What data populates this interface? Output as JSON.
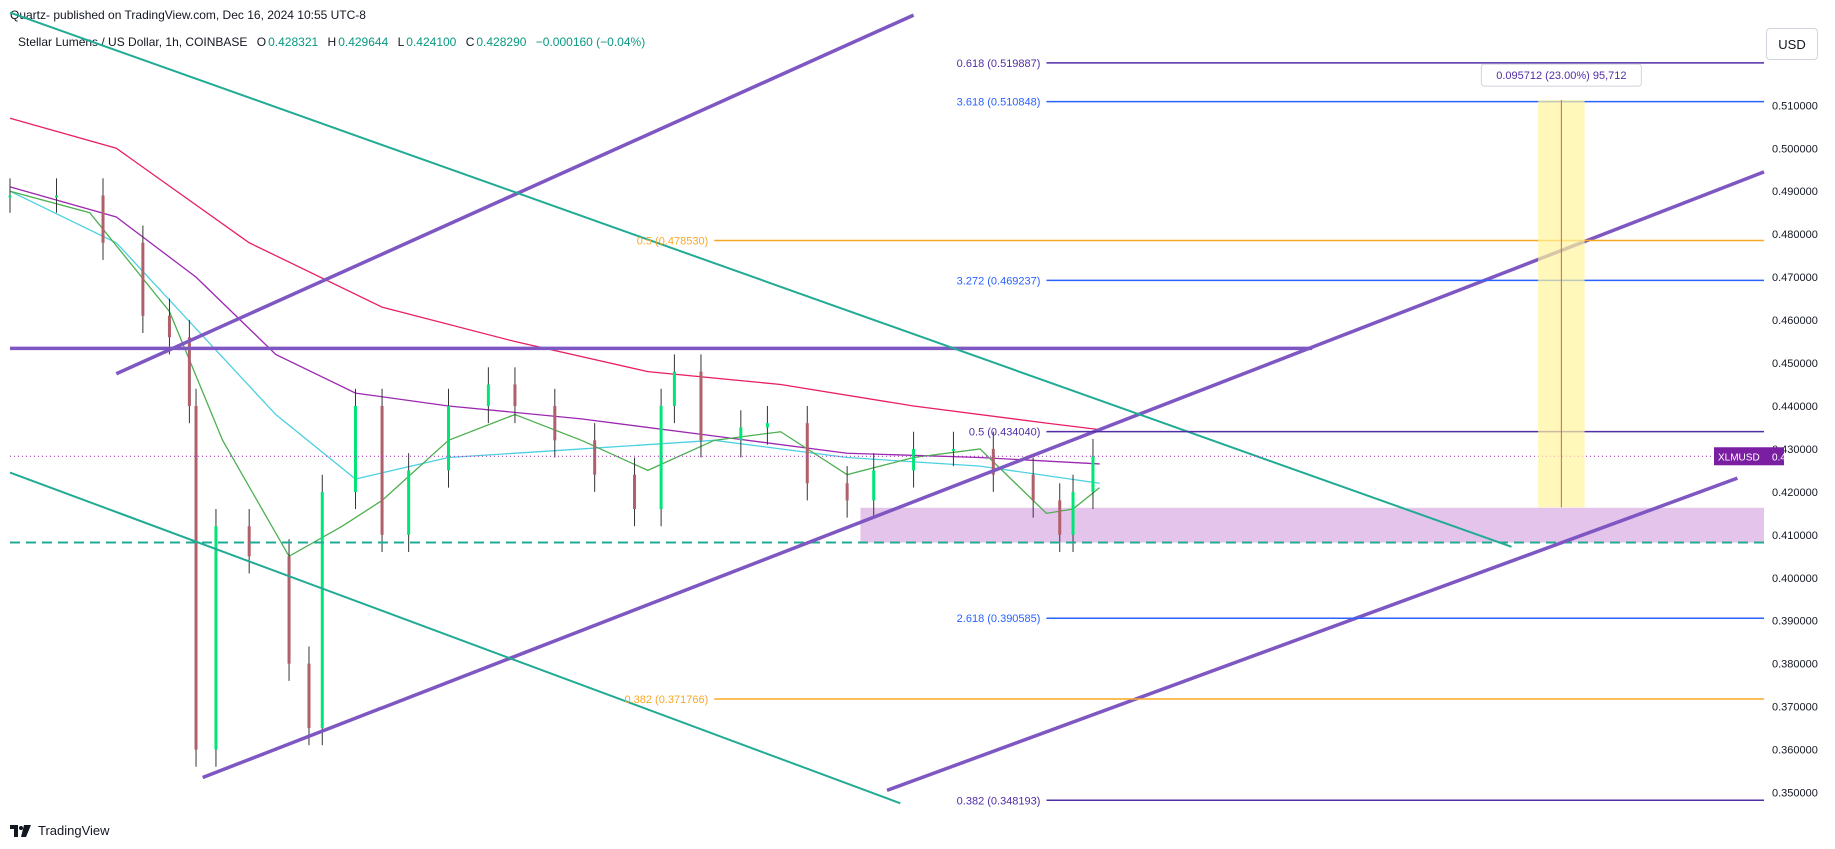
{
  "header": {
    "publisher": "Quartz- published on TradingView.com, Dec 16, 2024 10:55 UTC-8"
  },
  "legend": {
    "symbol": "Stellar Lumens / US Dollar, 1h, COINBASE",
    "o_label": "O",
    "o_val": "0.428321",
    "h_label": "H",
    "h_val": "0.429644",
    "l_label": "L",
    "l_val": "0.424100",
    "c_label": "C",
    "c_val": "0.428290",
    "change": "−0.000160 (−0.04%)"
  },
  "price_scale": {
    "currency": "USD"
  },
  "footer": {
    "brand": "TradingView"
  },
  "colors": {
    "purple": "#7e57c2",
    "teal": "#22ab94",
    "orange": "#f9a825",
    "blue": "#2962ff",
    "dark_purple": "#512da8",
    "candle_up": "#00e676",
    "candle_down": "#b0606a",
    "ma_red": "#e91e63",
    "ma_purple": "#9c27b0",
    "ma_cyan": "#4dd0e1",
    "ma_green": "#4caf50"
  },
  "chart_data": {
    "type": "line",
    "title": "Stellar Lumens / US Dollar, 1h, COINBASE",
    "ylim": [
      0.345,
      0.528
    ],
    "y_ticks": [
      "0.510000",
      "0.500000",
      "0.490000",
      "0.480000",
      "0.470000",
      "0.460000",
      "0.450000",
      "0.440000",
      "0.430000",
      "0.420000",
      "0.410000",
      "0.400000",
      "0.390000",
      "0.380000",
      "0.370000",
      "0.360000",
      "0.350000"
    ],
    "x_ticks": [
      "9",
      "10",
      "11",
      "12",
      "13",
      "14",
      "15",
      "16",
      "17",
      "18",
      "19",
      "20",
      "21"
    ],
    "x_range": [
      8.2,
      21.4
    ],
    "price_line": {
      "label": "XLMUSD",
      "value": "0.428290",
      "y": 0.42829
    },
    "levels": [
      {
        "label": "0.618 (0.519887)",
        "y": 0.519887,
        "color": "#512da8",
        "x_start": 16.0
      },
      {
        "label": "3.618 (0.510848)",
        "y": 0.510848,
        "color": "#2962ff",
        "x_start": 16.0
      },
      {
        "label": "0.5 (0.478530)",
        "y": 0.47853,
        "color": "#f9a825",
        "x_start": 13.5
      },
      {
        "label": "3.272 (0.469237)",
        "y": 0.469237,
        "color": "#2962ff",
        "x_start": 16.0
      },
      {
        "label": "0.5 (0.434040)",
        "y": 0.43404,
        "color": "#512da8",
        "x_start": 16.0
      },
      {
        "label": "2.618 (0.390585)",
        "y": 0.390585,
        "color": "#2962ff",
        "x_start": 16.0
      },
      {
        "label": "0.382 (0.371766)",
        "y": 0.371766,
        "color": "#f9a825",
        "x_start": 13.5
      },
      {
        "label": "0.382 (0.348193)",
        "y": 0.348193,
        "color": "#512da8",
        "x_start": 16.0
      }
    ],
    "measure": {
      "label": "0.095712 (23.00%) 95,712",
      "x0": 19.7,
      "x1": 20.05,
      "y0": 0.41639,
      "y1": 0.51121
    },
    "support_zone": {
      "x0": 14.6,
      "x1": 21.4,
      "y0": 0.4082,
      "y1": 0.4163
    },
    "trendlines": [
      {
        "x0": 8.2,
        "y0": 0.4534,
        "x1": 18.0,
        "y1": 0.4534,
        "color": "#7e57c2"
      },
      {
        "x0": 8.2,
        "y0": 0.4082,
        "x1": 21.4,
        "y1": 0.4082,
        "color": "#22ab94",
        "dashed": true
      },
      {
        "x0": 9.0,
        "y0": 0.4475,
        "x1": 15.0,
        "y1": 0.531,
        "color": "#7e57c2"
      },
      {
        "x0": 9.65,
        "y0": 0.3535,
        "x1": 21.4,
        "y1": 0.4945,
        "color": "#7e57c2"
      },
      {
        "x0": 14.8,
        "y0": 0.3505,
        "x1": 21.2,
        "y1": 0.4232,
        "color": "#7e57c2"
      },
      {
        "x0": 8.2,
        "y0": 0.5316,
        "x1": 19.5,
        "y1": 0.4072,
        "color": "#22ab94"
      },
      {
        "x0": 8.2,
        "y0": 0.4245,
        "x1": 14.9,
        "y1": 0.3475,
        "color": "#22ab94"
      }
    ],
    "series": [
      {
        "type": "candles",
        "x": [
          8.2,
          8.55,
          8.9,
          9.2,
          9.4,
          9.55,
          9.6,
          9.75,
          10.0,
          10.3,
          10.45,
          10.55,
          10.8,
          11.0,
          11.2,
          11.5,
          11.8,
          12.0,
          12.3,
          12.6,
          12.9,
          13.1,
          13.2,
          13.4,
          13.7,
          13.9,
          14.2,
          14.5,
          14.7,
          15.0,
          15.3,
          15.6,
          15.9,
          16.1,
          16.2,
          16.35
        ],
        "close": [
          0.489,
          0.489,
          0.478,
          0.461,
          0.456,
          0.44,
          0.36,
          0.412,
          0.405,
          0.38,
          0.365,
          0.42,
          0.44,
          0.41,
          0.425,
          0.44,
          0.445,
          0.44,
          0.432,
          0.424,
          0.416,
          0.44,
          0.448,
          0.432,
          0.435,
          0.436,
          0.422,
          0.418,
          0.425,
          0.43,
          0.43,
          0.424,
          0.418,
          0.41,
          0.42,
          0.4283
        ]
      },
      {
        "name": "",
        "type": "ma",
        "color": "#e91e63",
        "x": [
          8.2,
          9.0,
          10.0,
          11.0,
          12.0,
          13.0,
          14.0,
          15.0,
          16.0,
          16.4
        ],
        "y": [
          0.507,
          0.5,
          0.478,
          0.463,
          0.455,
          0.448,
          0.445,
          0.44,
          0.436,
          0.4345
        ]
      },
      {
        "name": "",
        "type": "ma",
        "color": "#9c27b0",
        "x": [
          8.2,
          9.0,
          9.6,
          10.2,
          10.8,
          11.5,
          12.5,
          13.5,
          14.5,
          15.5,
          16.4
        ],
        "y": [
          0.491,
          0.484,
          0.47,
          0.452,
          0.443,
          0.44,
          0.437,
          0.433,
          0.429,
          0.428,
          0.4265
        ]
      },
      {
        "name": "",
        "type": "ma",
        "color": "#4dd0e1",
        "x": [
          8.2,
          9.0,
          9.6,
          10.2,
          10.8,
          11.5,
          12.5,
          13.5,
          14.5,
          15.5,
          16.4
        ],
        "y": [
          0.49,
          0.478,
          0.458,
          0.438,
          0.423,
          0.428,
          0.43,
          0.432,
          0.428,
          0.426,
          0.422
        ]
      },
      {
        "name": "",
        "type": "ma",
        "color": "#4caf50",
        "x": [
          8.2,
          8.8,
          9.4,
          9.8,
          10.3,
          10.7,
          11.0,
          11.5,
          12.0,
          12.5,
          13.0,
          13.5,
          14.0,
          14.5,
          15.0,
          15.5,
          16.0,
          16.2,
          16.4
        ],
        "y": [
          0.49,
          0.485,
          0.462,
          0.432,
          0.405,
          0.412,
          0.418,
          0.432,
          0.438,
          0.432,
          0.425,
          0.432,
          0.434,
          0.424,
          0.428,
          0.43,
          0.415,
          0.416,
          0.421
        ]
      }
    ]
  }
}
